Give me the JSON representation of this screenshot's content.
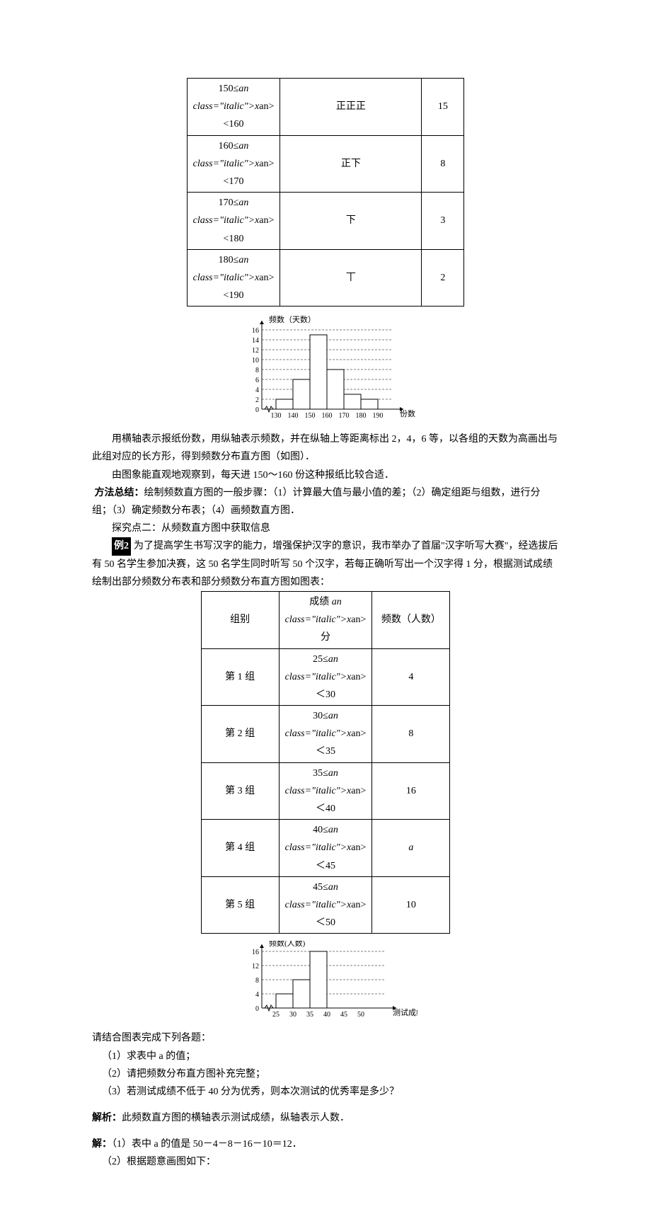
{
  "table1": {
    "rows": [
      {
        "range": "150≤x<160",
        "tally": "正正正",
        "freq": "15"
      },
      {
        "range": "160≤x<170",
        "tally": "正下",
        "freq": "8"
      },
      {
        "range": "170≤x<180",
        "tally": "下",
        "freq": "3"
      },
      {
        "range": "180≤x<190",
        "tally": "丅",
        "freq": "2"
      }
    ]
  },
  "chart1": {
    "y_label": "频数（天数）",
    "x_label": "份数",
    "x_ticks": [
      "130",
      "140",
      "150",
      "160",
      "170",
      "180",
      "190"
    ],
    "y_ticks": [
      "0",
      "2",
      "4",
      "6",
      "8",
      "10",
      "12",
      "14",
      "16"
    ],
    "bars": [
      {
        "x": 0,
        "h": 2
      },
      {
        "x": 1,
        "h": 6
      },
      {
        "x": 2,
        "h": 15
      },
      {
        "x": 3,
        "h": 8
      },
      {
        "x": 4,
        "h": 3
      },
      {
        "x": 5,
        "h": 2
      }
    ],
    "axis_color": "#000",
    "bar_fill": "#ffffff",
    "bar_stroke": "#000",
    "grid_color": "#000",
    "grid_dash": "3,2",
    "axis_fontsize": 10
  },
  "para1": "用横轴表示报纸份数，用纵轴表示频数，并在纵轴上等距离标出 2，4，6 等，以各组的天数为高画出与此组对应的长方形，得到频数分布直方图（如图）．",
  "para2": "由图象能直观地观察到，每天进 150～160 份这种报纸比较合适．",
  "para3_label": "方法总结：",
  "para3": "绘制频数直方图的一般步骤：（1）计算最大值与最小值的差；（2）确定组距与组数，进行分组；（3）确定频数分布表；（4）画频数直方图．",
  "para4": "探究点二：从频数直方图中获取信息",
  "ex2_label": "例2",
  "para5": "为了提高学生书写汉字的能力，增强保护汉字的意识，我市举办了首届\"汉字听写大赛\"，经选拔后有 50 名学生参加决赛，这 50 名学生同时听写 50 个汉字，若每正确听写出一个汉字得 1 分，根据测试成绩绘制出部分频数分布表和部分频数分布直方图如图表：",
  "table2": {
    "header": [
      "组别",
      "成绩 x 分",
      "频数（人数）"
    ],
    "rows": [
      [
        "第 1 组",
        "25≤x＜30",
        "4"
      ],
      [
        "第 2 组",
        "30≤x＜35",
        "8"
      ],
      [
        "第 3 组",
        "35≤x＜40",
        "16"
      ],
      [
        "第 4 组",
        "40≤x＜45",
        "a"
      ],
      [
        "第 5 组",
        "45≤x＜50",
        "10"
      ]
    ]
  },
  "chart2": {
    "y_label": "频数(人数)",
    "x_label": "测试成绩",
    "x_ticks": [
      "25",
      "30",
      "35",
      "40",
      "45",
      "50"
    ],
    "y_ticks": [
      "0",
      "4",
      "8",
      "12",
      "16"
    ],
    "bars": [
      {
        "x": 0,
        "h": 4
      },
      {
        "x": 1,
        "h": 8
      },
      {
        "x": 2,
        "h": 16
      }
    ],
    "axis_color": "#000",
    "bar_fill": "#ffffff",
    "bar_stroke": "#000",
    "grid_color": "#000",
    "grid_dash": "3,2",
    "axis_fontsize": 10
  },
  "q_intro": "请结合图表完成下列各题：",
  "q1": "（1）求表中 a 的值；",
  "q2": "（2）请把频数分布直方图补充完整；",
  "q3": "（3）若测试成绩不低于 40 分为优秀，则本次测试的优秀率是多少？",
  "ana_label": "解析：",
  "ana": "此频数直方图的横轴表示测试成绩，纵轴表示人数．",
  "sol_label": "解：",
  "sol1": "（1）表中 a 的值是 50－4－8－16－10＝12．",
  "sol2": "（2）根据题意画图如下："
}
